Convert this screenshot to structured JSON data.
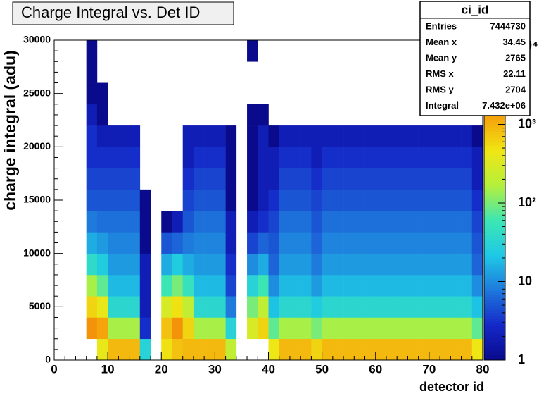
{
  "chart_data": {
    "type": "heatmap",
    "title": "Charge Integral vs. Det ID",
    "xlabel": "detector id",
    "ylabel": "charge integral (adu)",
    "xlim": [
      0,
      80
    ],
    "xticks": [
      0,
      10,
      20,
      30,
      40,
      50,
      60,
      70,
      80
    ],
    "ylim": [
      0,
      30000
    ],
    "yticks": [
      0,
      5000,
      10000,
      15000,
      20000,
      25000,
      30000
    ],
    "zlim": [
      1,
      10000
    ],
    "zscale": "log",
    "zticks": [
      1,
      10,
      {
        "value": 100,
        "label": "10²"
      },
      {
        "value": 1000,
        "label": "10³"
      },
      {
        "value": 10000,
        "label": "10⁴"
      }
    ],
    "palette": [
      "#0a0a8c",
      "#1428c8",
      "#1e78dc",
      "#1ec8e6",
      "#3ce6b4",
      "#b4f03c",
      "#f0e614",
      "#f5a00a",
      "#e6460a",
      "#8c0a0a"
    ],
    "z": [
      [
        0,
        0,
        0,
        0,
        0,
        0,
        0,
        0,
        0,
        0,
        0,
        0,
        0,
        0,
        0
      ],
      [
        0,
        0,
        0,
        0,
        0,
        0,
        0,
        0,
        0,
        0,
        0,
        0,
        0,
        0,
        0
      ],
      [
        0,
        0,
        0,
        0,
        0,
        0,
        0,
        0,
        0,
        0,
        0,
        0,
        0,
        0,
        0
      ],
      [
        0,
        1500,
        600,
        150,
        40,
        15,
        8,
        5,
        4,
        3,
        3,
        2,
        1,
        1,
        1
      ],
      [
        400,
        1200,
        400,
        80,
        25,
        12,
        7,
        5,
        4,
        3,
        2,
        1,
        1,
        0,
        0
      ],
      [
        900,
        150,
        35,
        18,
        12,
        9,
        7,
        5,
        4,
        3,
        2,
        0,
        0,
        0,
        0
      ],
      [
        900,
        150,
        35,
        18,
        12,
        9,
        7,
        5,
        4,
        3,
        2,
        0,
        0,
        0,
        0
      ],
      [
        900,
        150,
        35,
        18,
        12,
        9,
        7,
        5,
        4,
        3,
        2,
        0,
        0,
        0,
        0
      ],
      [
        30,
        3,
        2,
        2,
        2,
        1,
        1,
        1,
        0,
        0,
        0,
        0,
        0,
        0,
        0
      ],
      [
        0,
        0,
        0,
        0,
        0,
        0,
        0,
        0,
        0,
        0,
        0,
        0,
        0,
        0,
        0
      ],
      [
        500,
        800,
        300,
        60,
        15,
        5,
        1,
        0,
        0,
        0,
        0,
        0,
        0,
        0,
        0
      ],
      [
        800,
        1500,
        500,
        100,
        25,
        6,
        2,
        0,
        0,
        0,
        0,
        0,
        0,
        0,
        0
      ],
      [
        900,
        600,
        200,
        50,
        15,
        8,
        5,
        4,
        3,
        2,
        2,
        0,
        0,
        0,
        0
      ],
      [
        900,
        150,
        35,
        18,
        12,
        9,
        7,
        5,
        4,
        3,
        2,
        0,
        0,
        0,
        0
      ],
      [
        900,
        150,
        35,
        18,
        12,
        9,
        7,
        5,
        4,
        3,
        2,
        0,
        0,
        0,
        0
      ],
      [
        900,
        150,
        35,
        18,
        12,
        9,
        7,
        5,
        4,
        3,
        2,
        0,
        0,
        0,
        0
      ],
      [
        200,
        30,
        8,
        4,
        3,
        2,
        2,
        1,
        1,
        1,
        1,
        0,
        0,
        0,
        0
      ],
      [
        0,
        0,
        0,
        0,
        0,
        0,
        0,
        0,
        0,
        0,
        0,
        0,
        0,
        0,
        0
      ],
      [
        0,
        300,
        100,
        30,
        10,
        4,
        2,
        1,
        1,
        1,
        1,
        1,
        0,
        0,
        1
      ],
      [
        0,
        600,
        200,
        60,
        15,
        6,
        3,
        2,
        2,
        2,
        2,
        1,
        0,
        0,
        0
      ],
      [
        450,
        80,
        20,
        10,
        6,
        5,
        4,
        3,
        2,
        2,
        1,
        0,
        0,
        0,
        0
      ],
      [
        900,
        150,
        35,
        18,
        12,
        9,
        7,
        5,
        4,
        3,
        2,
        0,
        0,
        0,
        0
      ],
      [
        900,
        150,
        35,
        18,
        12,
        9,
        7,
        5,
        4,
        3,
        2,
        0,
        0,
        0,
        0
      ],
      [
        900,
        150,
        35,
        18,
        12,
        9,
        7,
        5,
        4,
        3,
        2,
        0,
        0,
        0,
        0
      ],
      [
        600,
        100,
        25,
        12,
        8,
        6,
        5,
        4,
        3,
        2,
        2,
        0,
        0,
        0,
        0
      ],
      [
        900,
        150,
        35,
        18,
        12,
        9,
        7,
        5,
        4,
        3,
        2,
        0,
        0,
        0,
        0
      ],
      [
        900,
        150,
        35,
        18,
        12,
        9,
        7,
        5,
        4,
        3,
        2,
        0,
        0,
        0,
        0
      ],
      [
        900,
        150,
        35,
        18,
        12,
        9,
        7,
        5,
        4,
        3,
        2,
        0,
        0,
        0,
        0
      ],
      [
        900,
        150,
        35,
        18,
        12,
        9,
        7,
        5,
        4,
        3,
        2,
        0,
        0,
        0,
        0
      ],
      [
        900,
        150,
        35,
        18,
        12,
        9,
        7,
        5,
        4,
        3,
        2,
        0,
        0,
        0,
        0
      ],
      [
        900,
        150,
        35,
        18,
        12,
        9,
        7,
        5,
        4,
        3,
        2,
        0,
        0,
        0,
        0
      ],
      [
        900,
        150,
        35,
        18,
        12,
        9,
        7,
        5,
        4,
        3,
        2,
        0,
        0,
        0,
        0
      ],
      [
        900,
        150,
        35,
        18,
        12,
        9,
        7,
        5,
        4,
        3,
        2,
        0,
        0,
        0,
        0
      ],
      [
        900,
        150,
        35,
        18,
        12,
        9,
        7,
        5,
        4,
        3,
        2,
        0,
        0,
        0,
        0
      ],
      [
        900,
        150,
        35,
        18,
        12,
        9,
        7,
        5,
        4,
        3,
        2,
        0,
        0,
        0,
        0
      ],
      [
        900,
        150,
        35,
        18,
        12,
        9,
        7,
        5,
        4,
        3,
        2,
        0,
        0,
        0,
        0
      ],
      [
        900,
        150,
        35,
        18,
        12,
        9,
        7,
        5,
        4,
        3,
        2,
        0,
        0,
        0,
        0
      ],
      [
        900,
        150,
        35,
        18,
        12,
        9,
        7,
        5,
        4,
        3,
        2,
        0,
        0,
        0,
        0
      ],
      [
        900,
        150,
        35,
        18,
        12,
        9,
        7,
        5,
        4,
        3,
        2,
        0,
        0,
        0,
        0
      ],
      [
        450,
        80,
        20,
        10,
        6,
        5,
        4,
        3,
        2,
        2,
        1,
        0,
        0,
        0,
        0
      ]
    ],
    "stats": {
      "name": "ci_id",
      "rows": [
        [
          "Entries",
          "7444730"
        ],
        [
          "Mean x",
          "34.45"
        ],
        [
          "Mean y",
          "2765"
        ],
        [
          "RMS x",
          "22.11"
        ],
        [
          "RMS y",
          "2704"
        ],
        [
          "Integral",
          "7.432e+06"
        ]
      ]
    }
  }
}
